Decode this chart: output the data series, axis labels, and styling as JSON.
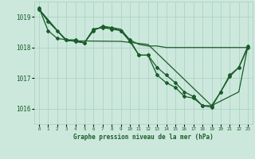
{
  "bg_color": "#cce8dc",
  "grid_color": "#a8cfc0",
  "line_color": "#1a5c2a",
  "title": "Graphe pression niveau de la mer (hPa)",
  "title_color": "#1a5c2a",
  "ylim": [
    1015.5,
    1019.5
  ],
  "xlim": [
    -0.5,
    23.5
  ],
  "yticks": [
    1016,
    1017,
    1018,
    1019
  ],
  "xtick_labels": [
    "0",
    "1",
    "2",
    "3",
    "4",
    "5",
    "6",
    "7",
    "8",
    "9",
    "10",
    "11",
    "12",
    "13",
    "14",
    "15",
    "16",
    "17",
    "18",
    "19",
    "20",
    "21",
    "22",
    "23"
  ],
  "series": [
    {
      "x": [
        0,
        3,
        9,
        12,
        19,
        22,
        23
      ],
      "y": [
        1019.25,
        1018.22,
        1018.2,
        1018.1,
        1016.1,
        1016.55,
        1018.05
      ],
      "marker": false,
      "lw": 0.9
    },
    {
      "x": [
        0,
        1,
        2,
        3,
        4,
        5,
        6,
        7,
        8,
        9,
        10,
        11,
        12,
        13,
        14,
        15,
        16,
        17,
        18,
        19,
        20,
        21,
        22,
        23
      ],
      "y": [
        1019.25,
        1018.85,
        1018.55,
        1018.25,
        1018.25,
        1018.15,
        1018.6,
        1018.65,
        1018.6,
        1018.55,
        1018.2,
        1017.75,
        1017.75,
        1017.35,
        1017.1,
        1016.85,
        1016.55,
        1016.4,
        1016.1,
        1016.1,
        1016.55,
        1017.1,
        1017.35,
        1018.05
      ],
      "marker": true,
      "lw": 0.9
    },
    {
      "x": [
        0,
        1,
        2,
        3,
        4,
        5,
        6,
        7,
        8,
        9,
        10,
        11,
        12,
        13,
        14,
        15,
        16,
        17,
        18,
        19,
        20,
        21,
        22,
        23
      ],
      "y": [
        1019.3,
        1018.55,
        1018.3,
        1018.25,
        1018.2,
        1018.15,
        1018.55,
        1018.7,
        1018.65,
        1018.55,
        1018.25,
        1017.75,
        1017.75,
        1017.1,
        1016.85,
        1016.7,
        1016.4,
        1016.35,
        1016.1,
        1016.05,
        1016.55,
        1017.05,
        1017.35,
        1018.0
      ],
      "marker": true,
      "lw": 0.9
    },
    {
      "x": [
        0,
        1,
        2,
        3,
        4,
        5,
        6,
        7,
        8,
        9,
        10,
        11,
        12,
        13,
        14,
        15,
        16,
        17,
        18,
        19,
        20,
        21,
        22,
        23
      ],
      "y": [
        1019.25,
        1018.9,
        1018.55,
        1018.25,
        1018.2,
        1018.15,
        1018.6,
        1018.65,
        1018.65,
        1018.6,
        1018.25,
        1018.1,
        1018.05,
        1018.05,
        1018.0,
        1018.0,
        1018.0,
        1018.0,
        1018.0,
        1018.0,
        1018.0,
        1018.0,
        1018.0,
        1018.0
      ],
      "marker": false,
      "lw": 0.9
    }
  ]
}
